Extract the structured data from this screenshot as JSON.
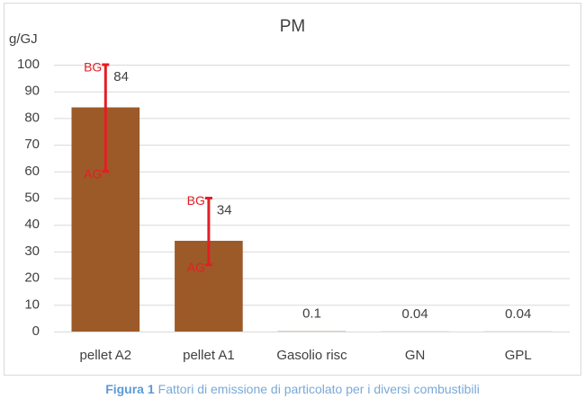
{
  "chart_data": {
    "type": "bar",
    "title": "PM",
    "y_axis_label": "g/GJ",
    "categories": [
      "pellet A2",
      "pellet A1",
      "Gasolio risc",
      "GN",
      "GPL"
    ],
    "values": [
      84,
      34,
      0.1,
      0.04,
      0.04
    ],
    "color": "#9c5a28",
    "error_low": [
      60,
      25,
      null,
      null,
      null
    ],
    "error_high": [
      100,
      50,
      null,
      null,
      null
    ],
    "error_low_label": "AG",
    "error_high_label": "BG",
    "error_color": "#e31e24",
    "ylim": [
      0,
      100
    ],
    "yticks": [
      0,
      10,
      20,
      30,
      40,
      50,
      60,
      70,
      80,
      90,
      100
    ],
    "grid": true,
    "caption_label": "Figura 1",
    "caption": "Fattori di emissione di particolato per i diversi combustibili"
  }
}
